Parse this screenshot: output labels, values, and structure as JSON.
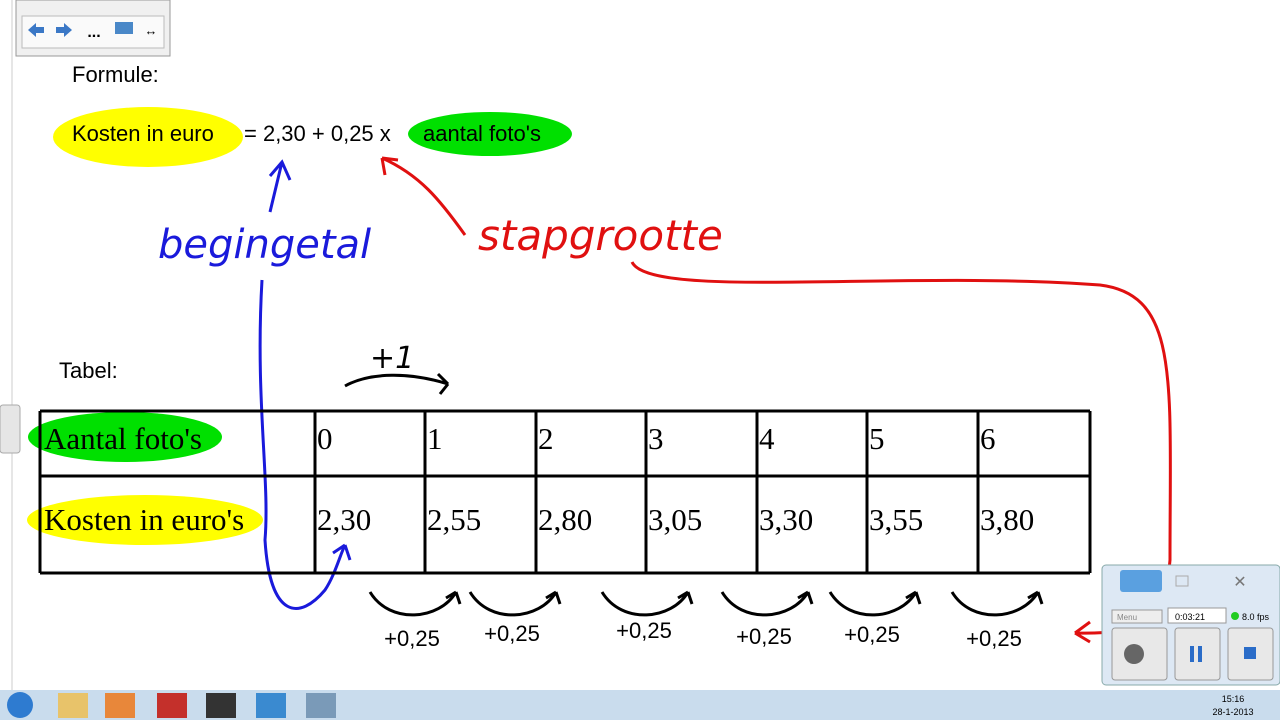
{
  "toolbar": {
    "more": "..."
  },
  "formula": {
    "label": "Formule:",
    "lhs": "Kosten in euro",
    "middle": "= 2,30 + 0,25 x",
    "rhs": "aantal foto's"
  },
  "annotations": {
    "start": "begingetal",
    "step": "stapgrootte",
    "increment": "+1"
  },
  "table": {
    "label": "Tabel:",
    "rows": [
      [
        "Aantal foto's",
        "0",
        "1",
        "2",
        "3",
        "4",
        "5",
        "6"
      ],
      [
        "Kosten in euro's",
        "2,30",
        "2,55",
        "2,80",
        "3,05",
        "3,30",
        "3,55",
        "3,80"
      ]
    ]
  },
  "steps": [
    "+0,25",
    "+0,25",
    "+0,25",
    "+0,25",
    "+0,25",
    "+0,25"
  ],
  "recorder": {
    "menu": "Menu",
    "time": "0:03:21",
    "fps": "8.0 fps"
  },
  "taskbar": {
    "time": "15:16",
    "date": "28-1-2013"
  }
}
